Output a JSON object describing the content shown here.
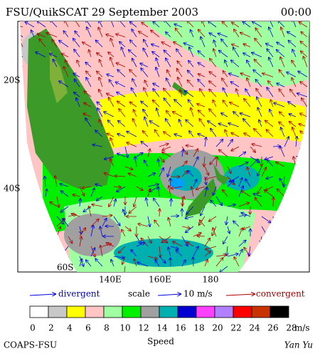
{
  "title": "FSU/QuikSCAT 29 September 2003",
  "time": "00:00",
  "map": {
    "lat_labels": [
      "20S",
      "40S",
      "60S"
    ],
    "lon_labels": [
      "140E",
      "160E",
      "180"
    ]
  },
  "legend": {
    "divergent": "divergent",
    "scale": "scale",
    "scale_value": "10 m/s",
    "convergent": "convergent"
  },
  "colorbar": {
    "colors": [
      "#ffffff",
      "#c8c8c8",
      "#ffff00",
      "#ffc4c4",
      "#a0ffa0",
      "#00f000",
      "#a0a0a0",
      "#00b0b0",
      "#0000d0",
      "#ff40ff",
      "#b080ff",
      "#ff0000",
      "#c83200",
      "#000000"
    ],
    "ticks": [
      0,
      2,
      4,
      6,
      8,
      10,
      12,
      14,
      16,
      18,
      20,
      22,
      24,
      26,
      28
    ],
    "unit": "m/s",
    "label": "Speed"
  },
  "footer": {
    "left": "COAPS-FSU",
    "right": "Yan Yu"
  }
}
